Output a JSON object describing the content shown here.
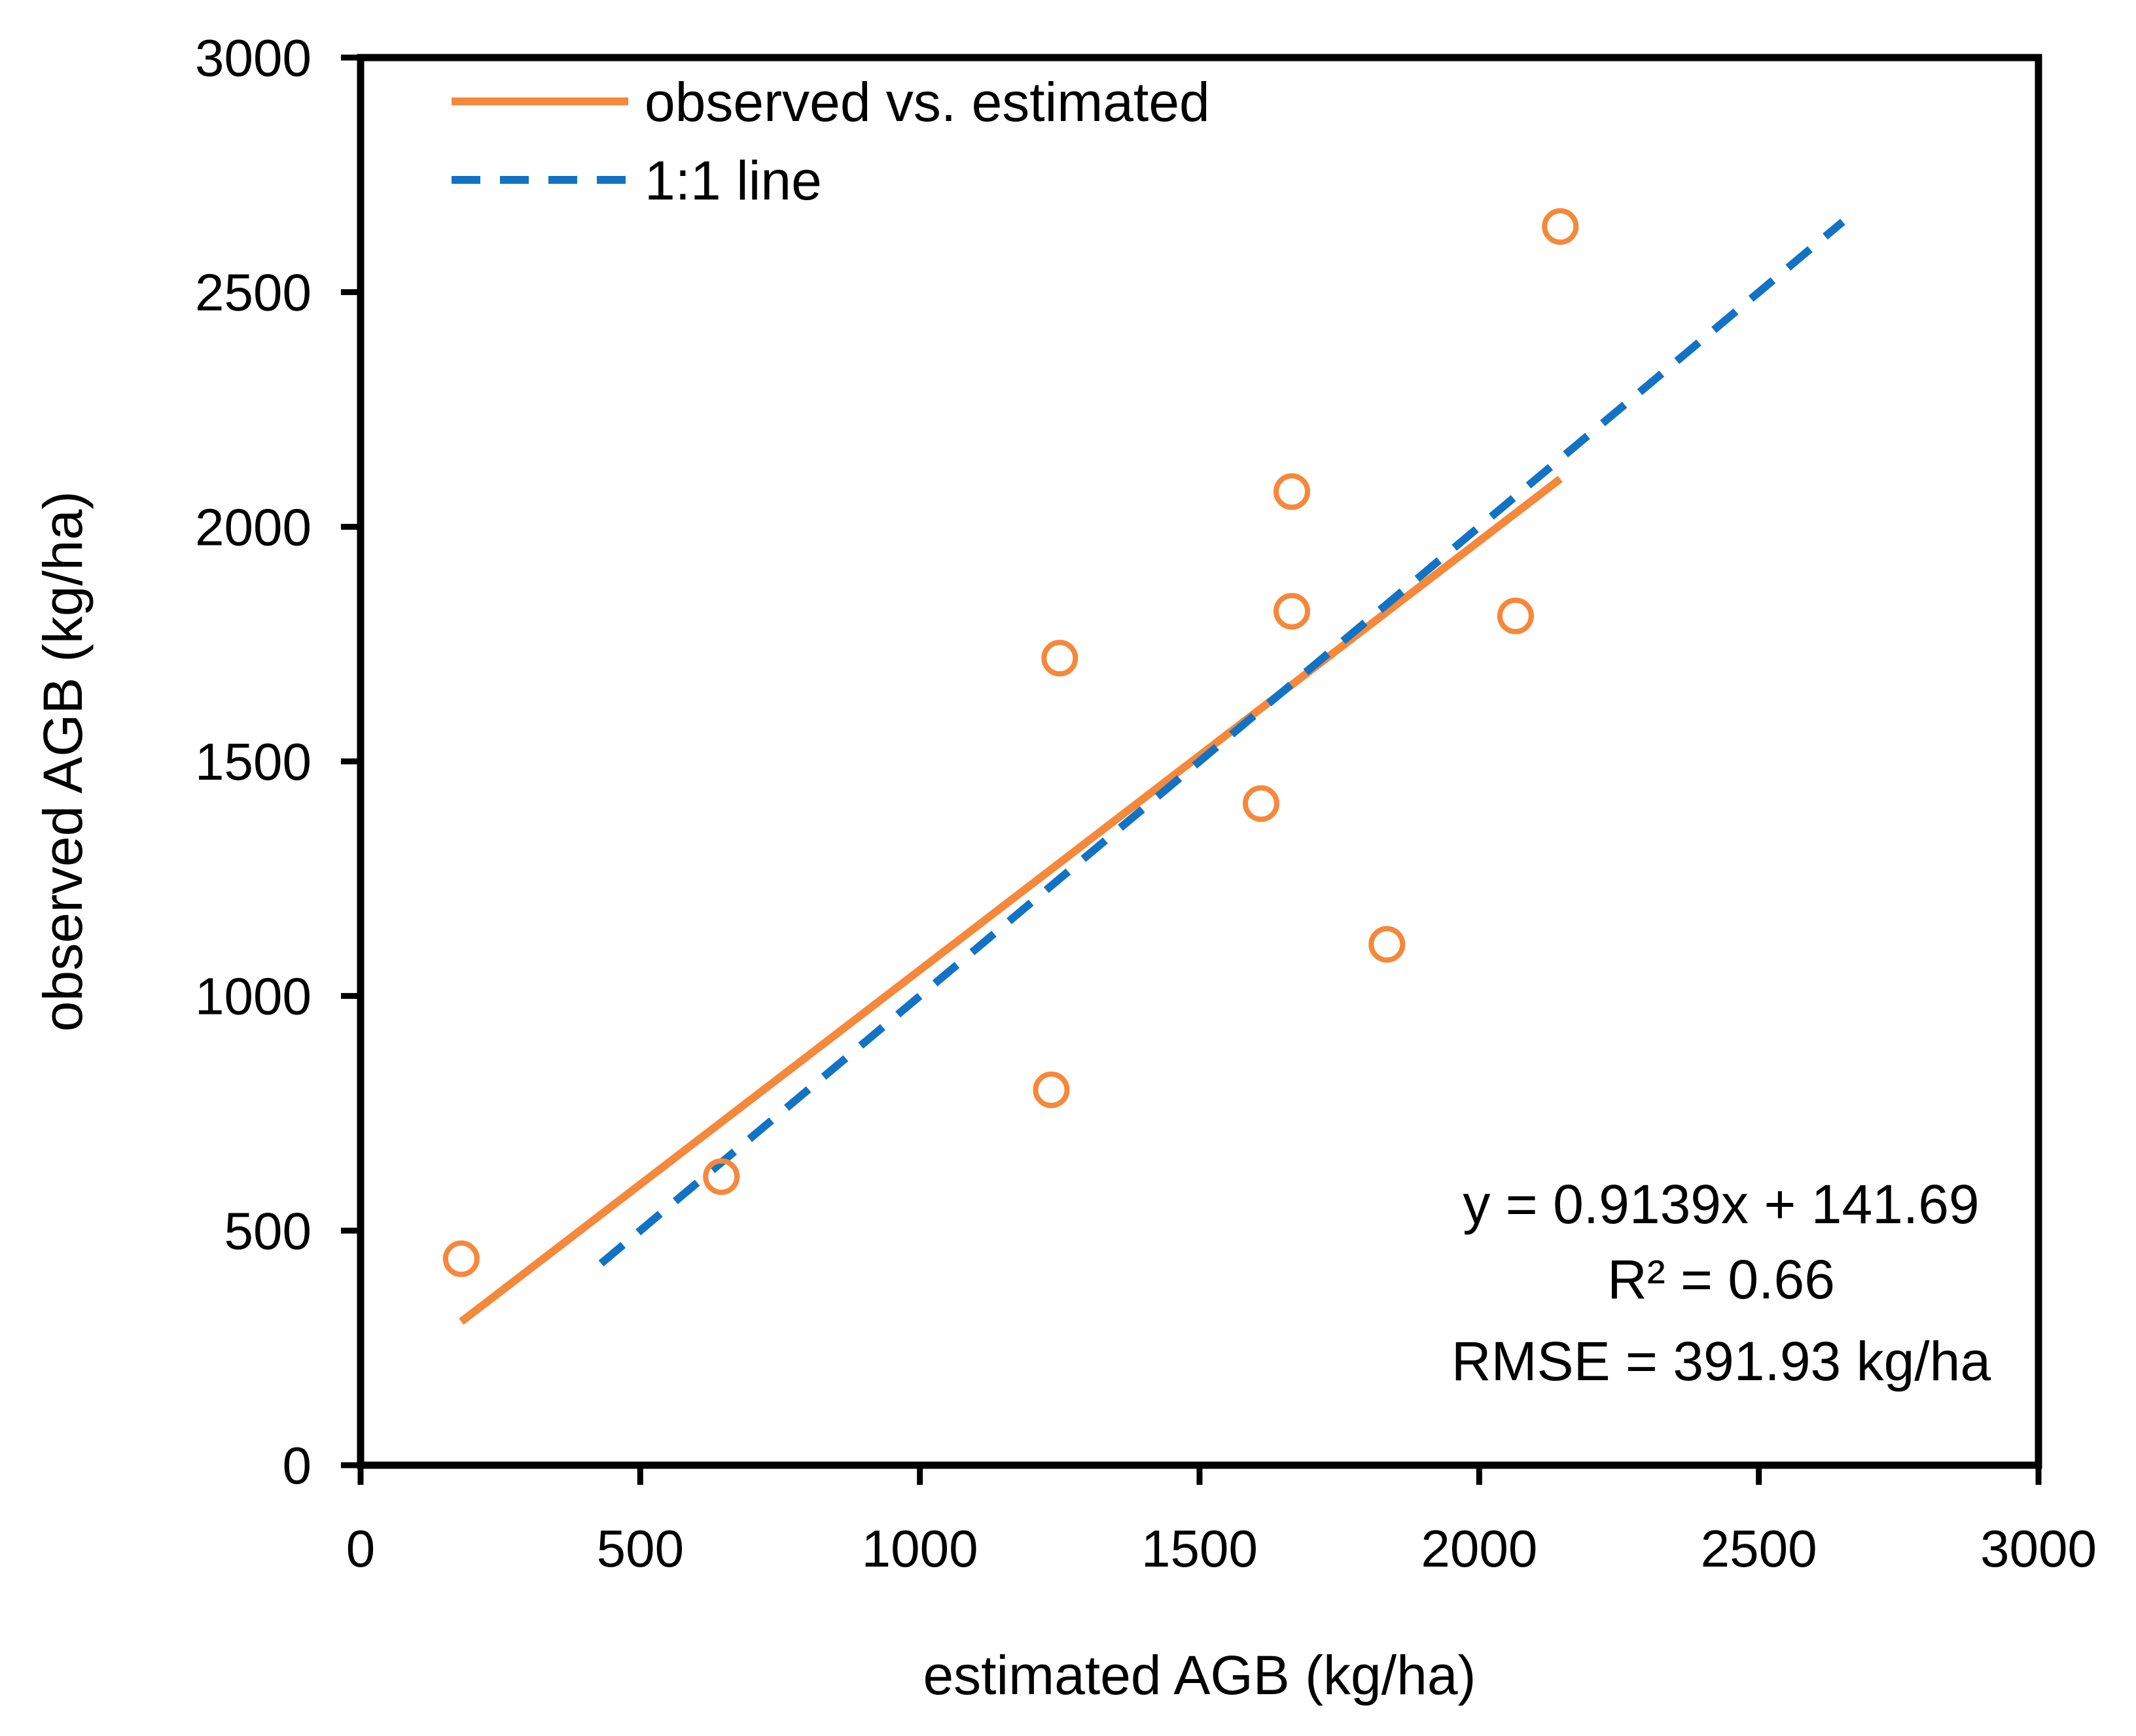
{
  "chart_data": {
    "type": "scatter",
    "xlabel": "estimated AGB (kg/ha)",
    "ylabel": "observed AGB (kg/ha)",
    "xlim": [
      0,
      3000
    ],
    "ylim": [
      0,
      3000
    ],
    "grid": false,
    "x_ticks": [
      0,
      500,
      1000,
      1500,
      2000,
      2500,
      3000
    ],
    "y_ticks": [
      0,
      500,
      1000,
      1500,
      2000,
      2500,
      3000
    ],
    "legend": {
      "position": "top-left",
      "entries": [
        {
          "label": "observed vs. estimated",
          "style": "solid",
          "color": "#F5883A"
        },
        {
          "label": "1:1 line",
          "style": "dashed",
          "color": "#1273C5"
        }
      ]
    },
    "series": [
      {
        "name": "points",
        "kind": "scatter",
        "marker": "open-circle",
        "color": "#F5883A",
        "x": [
          180,
          645,
          1235,
          1250,
          1610,
          1665,
          1665,
          1835,
          2065,
          2145
        ],
        "y": [
          440,
          615,
          800,
          1720,
          1410,
          2075,
          1820,
          1110,
          1810,
          2640
        ]
      },
      {
        "name": "observed vs. estimated",
        "kind": "line",
        "style": "solid",
        "color": "#F5883A",
        "x": [
          180,
          2145
        ],
        "y": [
          306,
          2102
        ]
      },
      {
        "name": "1:1 line",
        "kind": "line",
        "style": "dashed",
        "color": "#1273C5",
        "x": [
          430,
          2650
        ],
        "y": [
          430,
          2650
        ]
      }
    ],
    "annotations": [
      "y = 0.9139x + 141.69",
      "R² = 0.66",
      "RMSE = 391.93 kg/ha"
    ]
  }
}
